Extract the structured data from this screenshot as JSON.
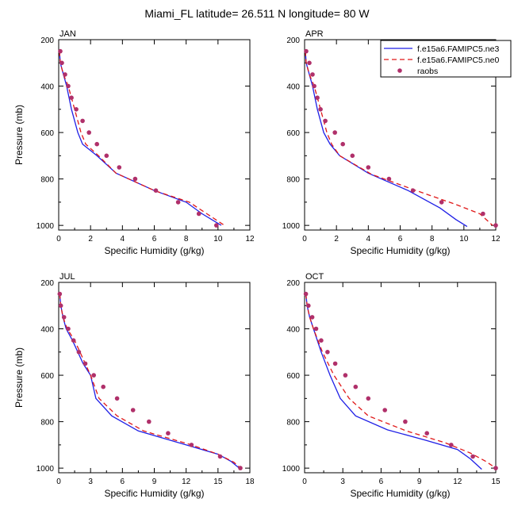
{
  "title": "Miami_FL  latitude= 26.511 N longitude= 80 W",
  "colors": {
    "model1": "#1f1fe6",
    "model2": "#e01818",
    "obs": "#b0306a"
  },
  "legend": {
    "placement": "top-right of APR panel",
    "items": [
      {
        "label": "f.e15a6.FAMIPC5.ne3",
        "style": "solid"
      },
      {
        "label": "f.e15a6.FAMIPC5.ne0",
        "style": "dashed"
      },
      {
        "label": "raobs",
        "style": "dots"
      }
    ]
  },
  "chart_data": [
    {
      "type": "line",
      "panel": "JAN",
      "xlabel": "Specific Humidity (g/kg)",
      "ylabel": "Pressure (mb)",
      "xlim": [
        0,
        12
      ],
      "ylim": [
        200,
        1020
      ],
      "y_inverted": true,
      "xticks": [
        0,
        2,
        4,
        6,
        8,
        10,
        12
      ],
      "yticks": [
        200,
        400,
        600,
        800,
        1000
      ],
      "series": [
        {
          "name": "f.e15a6.FAMIPC5.ne3",
          "points": [
            [
              0.05,
              250
            ],
            [
              0.1,
              300
            ],
            [
              0.3,
              350
            ],
            [
              0.5,
              400
            ],
            [
              0.8,
              500
            ],
            [
              1.2,
              600
            ],
            [
              1.5,
              650
            ],
            [
              2.4,
              700
            ],
            [
              3.6,
              775
            ],
            [
              6,
              850
            ],
            [
              8,
              900
            ],
            [
              9,
              950
            ],
            [
              10.2,
              1000
            ]
          ]
        },
        {
          "name": "f.e15a6.FAMIPC5.ne0",
          "points": [
            [
              0.05,
              250
            ],
            [
              0.1,
              300
            ],
            [
              0.3,
              350
            ],
            [
              0.6,
              400
            ],
            [
              1.0,
              500
            ],
            [
              1.4,
              600
            ],
            [
              1.7,
              650
            ],
            [
              2.5,
              700
            ],
            [
              3.6,
              775
            ],
            [
              6,
              850
            ],
            [
              8.2,
              900
            ],
            [
              9.3,
              950
            ],
            [
              10.4,
              1000
            ]
          ]
        },
        {
          "name": "raobs",
          "points": [
            [
              0.1,
              250
            ],
            [
              0.2,
              300
            ],
            [
              0.4,
              350
            ],
            [
              0.6,
              400
            ],
            [
              0.8,
              450
            ],
            [
              1.1,
              500
            ],
            [
              1.5,
              550
            ],
            [
              1.9,
              600
            ],
            [
              2.4,
              650
            ],
            [
              3.0,
              700
            ],
            [
              3.8,
              750
            ],
            [
              4.8,
              800
            ],
            [
              6.1,
              850
            ],
            [
              7.5,
              900
            ],
            [
              8.8,
              950
            ],
            [
              9.9,
              1000
            ]
          ]
        }
      ]
    },
    {
      "type": "line",
      "panel": "APR",
      "xlabel": "Specific Humidity (g/kg)",
      "ylabel": "",
      "xlim": [
        0,
        12
      ],
      "ylim": [
        200,
        1020
      ],
      "y_inverted": true,
      "xticks": [
        0,
        2,
        4,
        6,
        8,
        10,
        12
      ],
      "yticks": [
        200,
        400,
        600,
        800,
        1000
      ],
      "series": [
        {
          "name": "f.e15a6.FAMIPC5.ne3",
          "points": [
            [
              0.05,
              250
            ],
            [
              0.1,
              300
            ],
            [
              0.3,
              350
            ],
            [
              0.5,
              400
            ],
            [
              0.8,
              500
            ],
            [
              1.2,
              600
            ],
            [
              1.6,
              650
            ],
            [
              2.2,
              700
            ],
            [
              4,
              775
            ],
            [
              6.5,
              850
            ],
            [
              8.5,
              925
            ],
            [
              9.5,
              975
            ],
            [
              10.2,
              1005
            ]
          ]
        },
        {
          "name": "f.e15a6.FAMIPC5.ne0",
          "points": [
            [
              0.05,
              250
            ],
            [
              0.1,
              300
            ],
            [
              0.3,
              350
            ],
            [
              0.6,
              400
            ],
            [
              1.0,
              500
            ],
            [
              1.4,
              600
            ],
            [
              1.7,
              650
            ],
            [
              2.2,
              700
            ],
            [
              4.2,
              780
            ],
            [
              7,
              850
            ],
            [
              9.5,
              910
            ],
            [
              11,
              950
            ],
            [
              11.8,
              1000
            ]
          ]
        },
        {
          "name": "raobs",
          "points": [
            [
              0.1,
              250
            ],
            [
              0.3,
              300
            ],
            [
              0.5,
              350
            ],
            [
              0.6,
              400
            ],
            [
              0.8,
              450
            ],
            [
              1.0,
              500
            ],
            [
              1.3,
              550
            ],
            [
              1.9,
              600
            ],
            [
              2.4,
              650
            ],
            [
              3.0,
              700
            ],
            [
              4.0,
              750
            ],
            [
              5.3,
              800
            ],
            [
              6.8,
              850
            ],
            [
              8.6,
              900
            ],
            [
              11.2,
              950
            ],
            [
              12,
              1000
            ]
          ]
        }
      ]
    },
    {
      "type": "line",
      "panel": "JUL",
      "xlabel": "Specific Humidity (g/kg)",
      "ylabel": "Pressure (mb)",
      "xlim": [
        0,
        18
      ],
      "ylim": [
        200,
        1020
      ],
      "y_inverted": true,
      "xticks": [
        0,
        3,
        6,
        9,
        12,
        15,
        18
      ],
      "yticks": [
        200,
        400,
        600,
        800,
        1000
      ],
      "series": [
        {
          "name": "f.e15a6.FAMIPC5.ne3",
          "points": [
            [
              0.1,
              250
            ],
            [
              0.2,
              300
            ],
            [
              0.4,
              350
            ],
            [
              0.7,
              400
            ],
            [
              1.3,
              450
            ],
            [
              2.3,
              550
            ],
            [
              3.0,
              600
            ],
            [
              3.5,
              700
            ],
            [
              5,
              775
            ],
            [
              7.5,
              840
            ],
            [
              12,
              900
            ],
            [
              15,
              940
            ],
            [
              16.2,
              970
            ],
            [
              17,
              1000
            ]
          ]
        },
        {
          "name": "f.e15a6.FAMIPC5.ne0",
          "points": [
            [
              0.1,
              250
            ],
            [
              0.2,
              300
            ],
            [
              0.4,
              350
            ],
            [
              0.8,
              400
            ],
            [
              1.5,
              450
            ],
            [
              2.5,
              550
            ],
            [
              3.0,
              600
            ],
            [
              3.8,
              700
            ],
            [
              5.5,
              775
            ],
            [
              8,
              840
            ],
            [
              12.5,
              900
            ],
            [
              15,
              940
            ],
            [
              16.5,
              975
            ],
            [
              17.1,
              1000
            ]
          ]
        },
        {
          "name": "raobs",
          "points": [
            [
              0.1,
              250
            ],
            [
              0.2,
              300
            ],
            [
              0.5,
              350
            ],
            [
              0.9,
              400
            ],
            [
              1.4,
              450
            ],
            [
              1.9,
              500
            ],
            [
              2.5,
              550
            ],
            [
              3.3,
              600
            ],
            [
              4.2,
              650
            ],
            [
              5.5,
              700
            ],
            [
              7.0,
              750
            ],
            [
              8.5,
              800
            ],
            [
              10.3,
              850
            ],
            [
              12.5,
              900
            ],
            [
              15.2,
              950
            ],
            [
              17.1,
              1000
            ]
          ]
        }
      ]
    },
    {
      "type": "line",
      "panel": "OCT",
      "xlabel": "Specific Humidity (g/kg)",
      "ylabel": "",
      "xlim": [
        0,
        15
      ],
      "ylim": [
        200,
        1020
      ],
      "y_inverted": true,
      "xticks": [
        0,
        3,
        6,
        9,
        12,
        15
      ],
      "yticks": [
        200,
        400,
        600,
        800,
        1000
      ],
      "series": [
        {
          "name": "f.e15a6.FAMIPC5.ne3",
          "points": [
            [
              0.1,
              250
            ],
            [
              0.2,
              300
            ],
            [
              0.4,
              350
            ],
            [
              0.7,
              400
            ],
            [
              1.3,
              500
            ],
            [
              2,
              600
            ],
            [
              2.8,
              700
            ],
            [
              4,
              775
            ],
            [
              6.5,
              835
            ],
            [
              9.5,
              880
            ],
            [
              12,
              920
            ],
            [
              13,
              960
            ],
            [
              13.9,
              1005
            ]
          ]
        },
        {
          "name": "f.e15a6.FAMIPC5.ne0",
          "points": [
            [
              0.1,
              250
            ],
            [
              0.2,
              300
            ],
            [
              0.4,
              350
            ],
            [
              0.7,
              400
            ],
            [
              1.4,
              500
            ],
            [
              2.3,
              600
            ],
            [
              3.5,
              700
            ],
            [
              5,
              775
            ],
            [
              8,
              840
            ],
            [
              11,
              890
            ],
            [
              13,
              935
            ],
            [
              14.2,
              970
            ],
            [
              15,
              1000
            ]
          ]
        },
        {
          "name": "raobs",
          "points": [
            [
              0.1,
              250
            ],
            [
              0.3,
              300
            ],
            [
              0.6,
              350
            ],
            [
              0.9,
              400
            ],
            [
              1.3,
              450
            ],
            [
              1.8,
              500
            ],
            [
              2.4,
              550
            ],
            [
              3.2,
              600
            ],
            [
              4.0,
              650
            ],
            [
              5.0,
              700
            ],
            [
              6.3,
              750
            ],
            [
              7.9,
              800
            ],
            [
              9.6,
              850
            ],
            [
              11.5,
              900
            ],
            [
              13.2,
              950
            ],
            [
              15,
              1000
            ]
          ]
        }
      ]
    }
  ]
}
